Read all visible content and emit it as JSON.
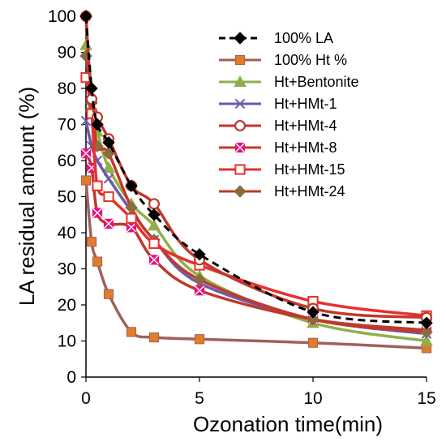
{
  "chart_data": {
    "type": "line",
    "xlabel": "Ozonation time(min)",
    "ylabel": "LA residual amount (%)",
    "xlim": [
      0,
      15
    ],
    "ylim": [
      0,
      100
    ],
    "xticks": [
      0,
      5,
      10,
      15
    ],
    "yticks": [
      0,
      10,
      20,
      30,
      40,
      50,
      60,
      70,
      80,
      90,
      100
    ],
    "grid": false,
    "legend_position": "top-right",
    "series": [
      {
        "name": "100% LA",
        "color": "#000000",
        "marker": "diamond",
        "dashed": true,
        "x": [
          0,
          0.25,
          0.5,
          1,
          2,
          3,
          5,
          10,
          15
        ],
        "y": [
          100,
          80,
          70,
          65,
          53,
          45,
          34,
          18,
          15
        ]
      },
      {
        "name": "100% Ht %",
        "color": "#E07C2A",
        "line_color": "#A0615A",
        "marker": "square",
        "x": [
          0,
          0.25,
          0.5,
          1,
          2,
          3,
          5,
          10,
          15
        ],
        "y": [
          54.5,
          37.5,
          32,
          23,
          12.5,
          11,
          10.5,
          9.5,
          8
        ]
      },
      {
        "name": "Ht+Bentonite",
        "color": "#8FAF4A",
        "marker": "triangle",
        "x": [
          0,
          0.25,
          0.5,
          1,
          2,
          3,
          5,
          10,
          15
        ],
        "y": [
          92,
          75,
          68,
          58,
          48,
          42,
          28,
          15,
          10
        ]
      },
      {
        "name": "Ht+HMt-1",
        "color": "#6E5AA8",
        "marker": "x",
        "x": [
          0,
          0.25,
          0.5,
          1,
          2,
          3,
          5,
          10,
          15
        ],
        "y": [
          71,
          64,
          60,
          55,
          46,
          38,
          26,
          16,
          12
        ]
      },
      {
        "name": "Ht+HMt-4",
        "color": "#C0392B",
        "marker": "circle",
        "x": [
          0,
          0.25,
          0.5,
          1,
          2,
          3,
          5,
          10,
          15
        ],
        "y": [
          100,
          77,
          72,
          66,
          53,
          48,
          32.5,
          19,
          16.5
        ]
      },
      {
        "name": "Ht+HMt-8",
        "color": "#E8107A",
        "line_color": "#C0392B",
        "marker": "star",
        "x": [
          0,
          0.25,
          0.5,
          1,
          2,
          3,
          5,
          10,
          15
        ],
        "y": [
          62,
          58,
          45.5,
          42.5,
          41.5,
          32.5,
          24,
          16,
          13
        ]
      },
      {
        "name": "Ht+HMt-15",
        "color": "#E8302A",
        "marker": "square-open",
        "x": [
          0,
          0.25,
          0.5,
          1,
          2,
          3,
          5,
          10,
          15
        ],
        "y": [
          83,
          73,
          53,
          50,
          44,
          37,
          31,
          21,
          17
        ]
      },
      {
        "name": "Ht+HMt-24",
        "color": "#8B6B3E",
        "line_color": "#C0392B",
        "marker": "diamond",
        "x": [
          0,
          0.25,
          0.5,
          1,
          2,
          3,
          5,
          10,
          15
        ],
        "y": [
          89,
          76,
          64,
          62,
          47,
          38,
          27,
          16,
          12.5
        ]
      }
    ]
  }
}
